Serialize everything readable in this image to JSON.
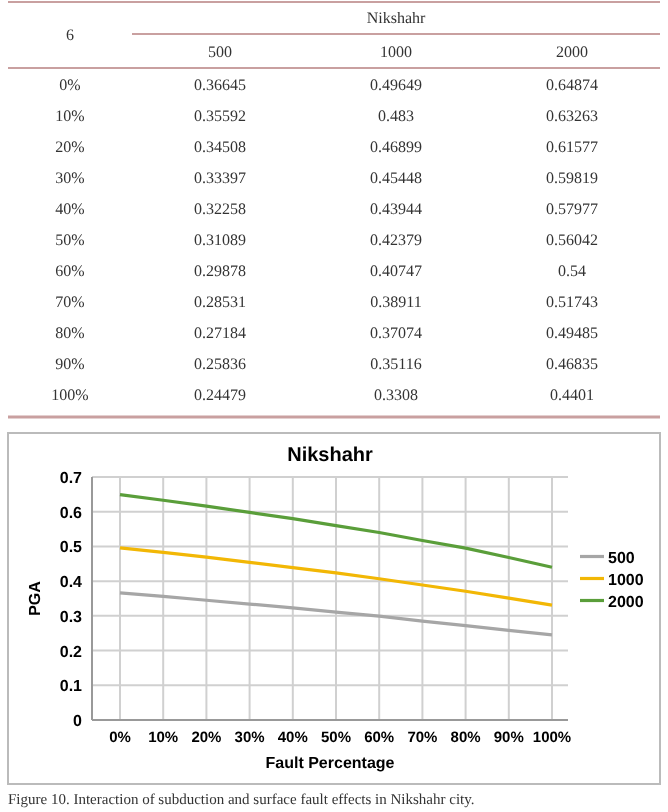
{
  "chart_data": [
    {
      "type": "heatmap",
      "title": "Nikshahr",
      "annotations": [
        "6"
      ],
      "data_labels": true,
      "categories": [
        "500",
        "1000",
        "2000"
      ],
      "y_categories": [
        "0%",
        "10%",
        "20%",
        "30%",
        "40%",
        "50%",
        "60%",
        "70%",
        "80%",
        "90%",
        "100%"
      ],
      "cells": [
        [
          0.36645,
          0.49649,
          0.64874
        ],
        [
          0.35592,
          0.483,
          0.63263
        ],
        [
          0.34508,
          0.46899,
          0.61577
        ],
        [
          0.33397,
          0.45448,
          0.59819
        ],
        [
          0.32258,
          0.43944,
          0.57977
        ],
        [
          0.31089,
          0.42379,
          0.56042
        ],
        [
          0.29878,
          0.40747,
          0.54
        ],
        [
          0.28531,
          0.38911,
          0.51743
        ],
        [
          0.27184,
          0.37074,
          0.49485
        ],
        [
          0.25836,
          0.35116,
          0.46835
        ],
        [
          0.24479,
          0.3308,
          0.4401
        ]
      ]
    },
    {
      "type": "line",
      "title": "Nikshahr",
      "xlabel": "Fault Percentage",
      "ylabel": "PGA",
      "categories": [
        "0%",
        "10%",
        "20%",
        "30%",
        "40%",
        "50%",
        "60%",
        "70%",
        "80%",
        "90%",
        "100%"
      ],
      "series": [
        {
          "name": "500",
          "color": "#a6a6a6",
          "values": [
            0.366,
            0.356,
            0.345,
            0.334,
            0.323,
            0.311,
            0.299,
            0.285,
            0.272,
            0.258,
            0.245
          ]
        },
        {
          "name": "1000",
          "color": "#f2b705",
          "values": [
            0.496,
            0.483,
            0.469,
            0.454,
            0.439,
            0.424,
            0.407,
            0.389,
            0.371,
            0.351,
            0.331
          ]
        },
        {
          "name": "2000",
          "color": "#5a9e3a",
          "values": [
            0.649,
            0.633,
            0.616,
            0.598,
            0.58,
            0.56,
            0.54,
            0.517,
            0.495,
            0.468,
            0.44
          ]
        }
      ],
      "ylim": [
        0,
        0.7
      ],
      "yticks": [
        0,
        0.1,
        0.2,
        0.3,
        0.4,
        0.5,
        0.6,
        0.7
      ],
      "grid": true,
      "legend": "right",
      "marker": "none",
      "line_style": "solid",
      "annotations": [
        "Figure 10. Interaction of subduction and surface fault effects in Nikshahr city."
      ]
    }
  ]
}
